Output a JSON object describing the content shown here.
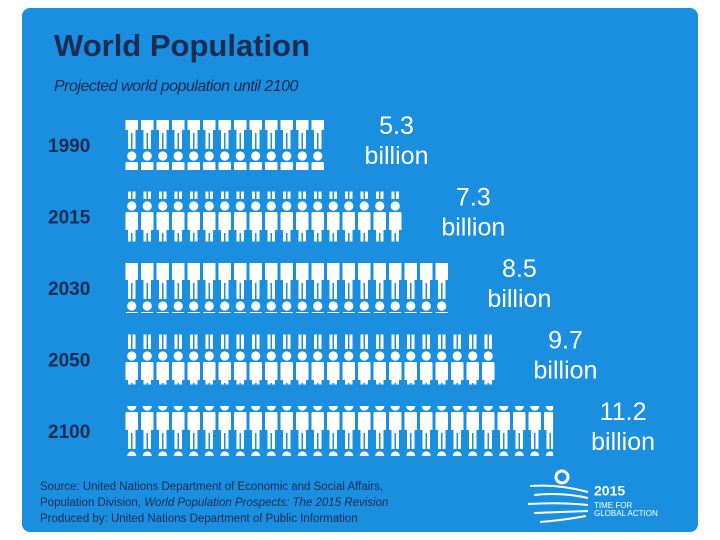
{
  "chart_data": {
    "type": "pictogram",
    "title": "World Population",
    "subtitle": "Projected world population until 2100",
    "categories": [
      "1990",
      "2015",
      "2030",
      "2050",
      "2100"
    ],
    "values": [
      5.3,
      7.3,
      8.5,
      9.7,
      11.2
    ],
    "value_labels": [
      "5.3 billion",
      "7.3 billion",
      "8.5 billion",
      "9.7 billion",
      "11.2 billion"
    ],
    "color": "#ffffff",
    "source": [
      "Source: United Nations Department of Economic and Social Affairs,",
      "Population Division, ",
      "World Population Prospects: The 2015 Revision",
      "Produced by: United Nations Department of Public Information"
    ],
    "logo": [
      "2015",
      "TIME FOR",
      "GLOBAL ACTION"
    ]
  }
}
